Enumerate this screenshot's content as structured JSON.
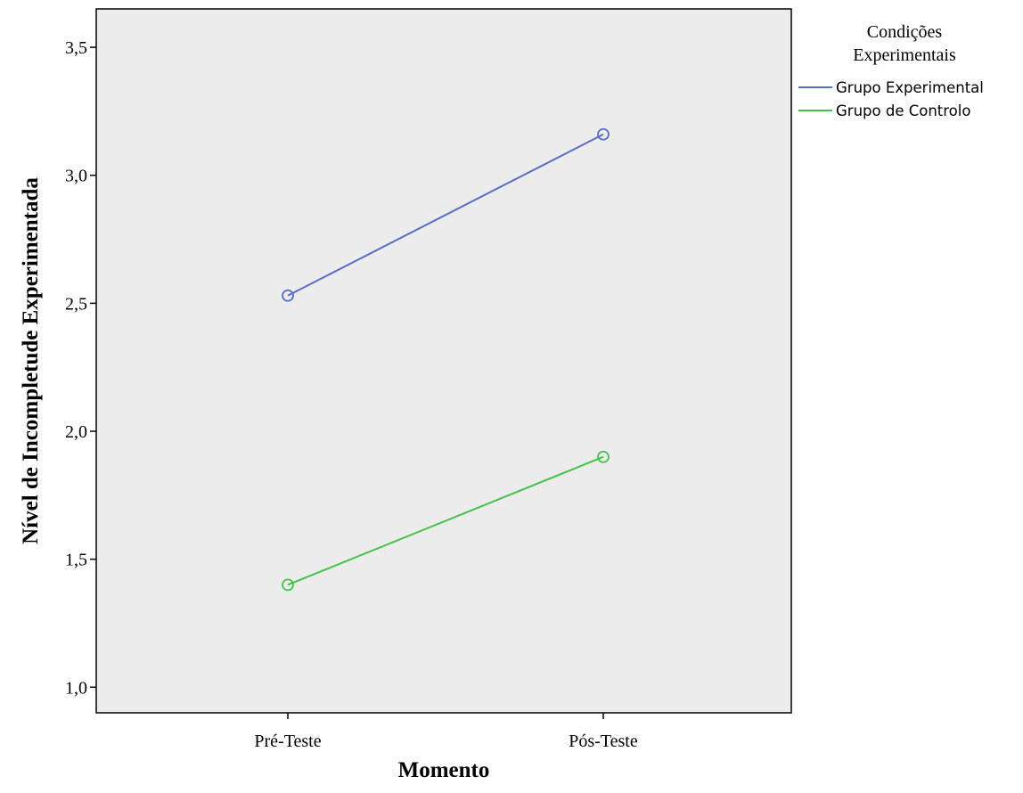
{
  "chart_data": {
    "type": "line",
    "xlabel": "Momento",
    "ylabel": "Nível de Incompletude Experimentada",
    "categories": [
      "Pré-Teste",
      "Pós-Teste"
    ],
    "ylim": [
      0.9,
      3.65
    ],
    "yticks": [
      1.0,
      1.5,
      2.0,
      2.5,
      3.0,
      3.5
    ],
    "ytick_labels": [
      "1,0",
      "1,5",
      "2,0",
      "2,5",
      "3,0",
      "3,5"
    ],
    "grid": false,
    "marker": "open-circle",
    "legend": {
      "title_lines": [
        "Condições",
        "Experimentais"
      ],
      "placement": "right-outside-top"
    },
    "series": [
      {
        "name": "Grupo Experimental",
        "color": "#5a6cc4",
        "values": [
          2.53,
          3.16
        ]
      },
      {
        "name": "Grupo de Controlo",
        "color": "#44c24a",
        "values": [
          1.4,
          1.9
        ]
      }
    ],
    "plot_background": "#ececec"
  }
}
